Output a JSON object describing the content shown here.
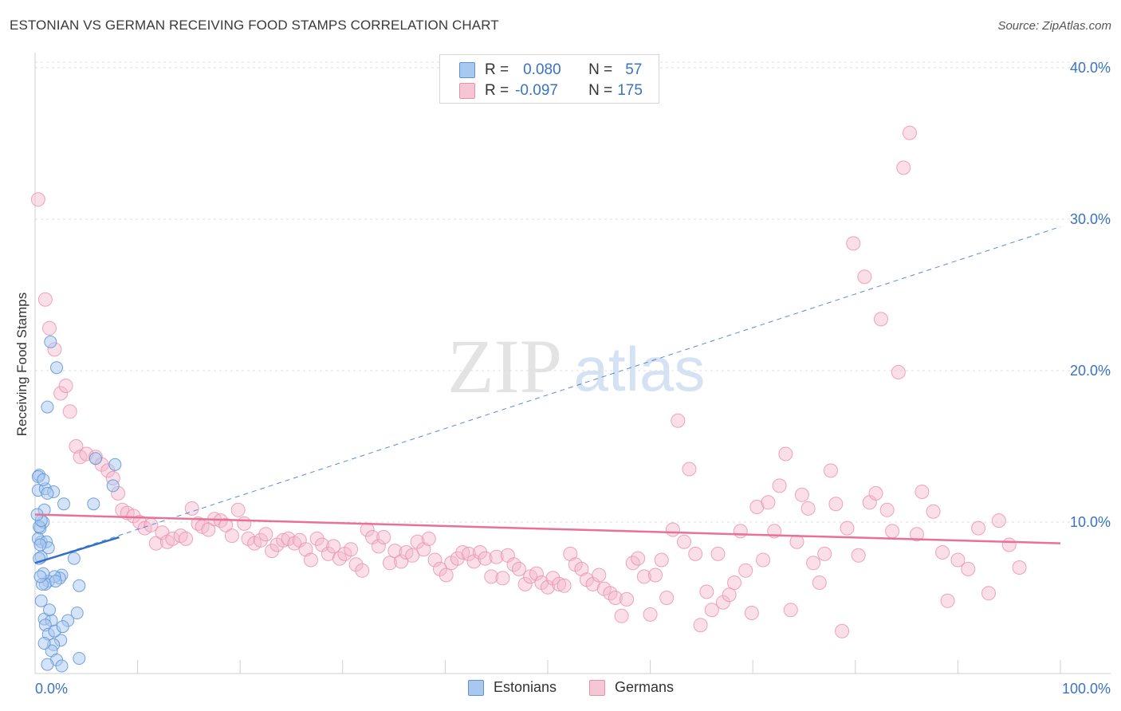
{
  "title": "ESTONIAN VS GERMAN RECEIVING FOOD STAMPS CORRELATION CHART",
  "source": "Source: ZipAtlas.com",
  "watermark": {
    "zip": "ZIP",
    "atlas": "atlas"
  },
  "colors": {
    "estonian_fill": "#a9c8ef",
    "estonian_stroke": "#5b93d6",
    "estonian_line": "#3070c8",
    "german_fill": "#f5b8cb",
    "german_stroke": "#e890ab",
    "german_line": "#e8709a",
    "axis_text": "#3a73c4",
    "grid": "#dcdcdc"
  },
  "legend": {
    "rows": [
      {
        "r_label": "R =",
        "r_value": "0.080",
        "n_label": "N =",
        "n_value": "57"
      },
      {
        "r_label": "R =",
        "r_value": "-0.097",
        "n_label": "N =",
        "n_value": "175"
      }
    ]
  },
  "bottom_legend": {
    "estonians": "Estonians",
    "germans": "Germans"
  },
  "chart_data": {
    "type": "scatter",
    "title": "ESTONIAN VS GERMAN RECEIVING FOOD STAMPS CORRELATION CHART",
    "xlabel": "",
    "ylabel": "Receiving Food Stamps",
    "xlim": [
      0,
      100
    ],
    "ylim": [
      0,
      41
    ],
    "x_tick_labels": [
      "0.0%",
      "100.0%"
    ],
    "y_ticks": [
      10,
      20,
      30,
      40
    ],
    "y_tick_labels": [
      "10.0%",
      "20.0%",
      "30.0%",
      "40.0%"
    ],
    "grid": true,
    "series": [
      {
        "name": "Estonians",
        "r": 0.08,
        "n": 57,
        "trend": {
          "x": [
            0,
            8.2
          ],
          "y": [
            7.3,
            9.0
          ]
        },
        "trend_extended": {
          "x": [
            0,
            100
          ],
          "y": [
            7.3,
            29.5
          ]
        },
        "points": [
          [
            0.3,
            12.1
          ],
          [
            0.4,
            13.1
          ],
          [
            0.6,
            8.7
          ],
          [
            0.5,
            9.6
          ],
          [
            0.8,
            10.0
          ],
          [
            0.3,
            8.9
          ],
          [
            0.9,
            10.8
          ],
          [
            0.6,
            7.7
          ],
          [
            1.0,
            12.2
          ],
          [
            1.1,
            8.7
          ],
          [
            1.3,
            8.3
          ],
          [
            1.2,
            17.6
          ],
          [
            1.5,
            21.9
          ],
          [
            2.1,
            20.2
          ],
          [
            1.8,
            12.0
          ],
          [
            2.8,
            11.2
          ],
          [
            5.7,
            11.2
          ],
          [
            7.8,
            13.8
          ],
          [
            7.6,
            12.4
          ],
          [
            5.9,
            14.2
          ],
          [
            3.8,
            7.6
          ],
          [
            2.6,
            6.5
          ],
          [
            2.4,
            6.3
          ],
          [
            1.9,
            6.4
          ],
          [
            1.3,
            6.1
          ],
          [
            1.0,
            5.9
          ],
          [
            2.0,
            6.1
          ],
          [
            0.8,
            6.6
          ],
          [
            0.6,
            4.8
          ],
          [
            0.9,
            3.6
          ],
          [
            1.6,
            3.5
          ],
          [
            1.0,
            3.2
          ],
          [
            1.3,
            2.6
          ],
          [
            2.5,
            2.2
          ],
          [
            1.8,
            1.9
          ],
          [
            1.6,
            1.5
          ],
          [
            2.1,
            0.9
          ],
          [
            1.2,
            0.6
          ],
          [
            2.6,
            0.5
          ],
          [
            4.3,
            1.0
          ],
          [
            3.2,
            3.5
          ],
          [
            4.1,
            4.0
          ],
          [
            4.3,
            5.8
          ],
          [
            0.7,
            5.9
          ],
          [
            0.4,
            7.6
          ],
          [
            0.5,
            8.5
          ],
          [
            0.4,
            9.7
          ],
          [
            0.6,
            10.1
          ],
          [
            1.2,
            11.9
          ],
          [
            0.3,
            13.0
          ],
          [
            0.8,
            12.8
          ],
          [
            0.9,
            2.0
          ],
          [
            1.9,
            2.8
          ],
          [
            0.5,
            6.4
          ],
          [
            1.4,
            4.2
          ],
          [
            2.7,
            3.1
          ],
          [
            0.2,
            10.5
          ]
        ]
      },
      {
        "name": "Germans",
        "r": -0.097,
        "n": 175,
        "trend": {
          "x": [
            0,
            100
          ],
          "y": [
            10.5,
            8.6
          ]
        },
        "points": [
          [
            0.3,
            31.3
          ],
          [
            1.0,
            24.7
          ],
          [
            1.4,
            22.8
          ],
          [
            1.9,
            21.4
          ],
          [
            2.5,
            18.5
          ],
          [
            3.0,
            19.0
          ],
          [
            3.4,
            17.3
          ],
          [
            4.0,
            15.0
          ],
          [
            4.4,
            14.3
          ],
          [
            5.0,
            14.5
          ],
          [
            5.9,
            14.3
          ],
          [
            6.5,
            13.8
          ],
          [
            7.1,
            13.4
          ],
          [
            7.6,
            12.9
          ],
          [
            8.1,
            11.9
          ],
          [
            8.5,
            10.8
          ],
          [
            9.0,
            10.6
          ],
          [
            9.6,
            10.4
          ],
          [
            10.2,
            10.0
          ],
          [
            10.7,
            9.6
          ],
          [
            11.3,
            9.8
          ],
          [
            11.8,
            8.6
          ],
          [
            12.4,
            9.3
          ],
          [
            12.9,
            8.7
          ],
          [
            13.4,
            8.9
          ],
          [
            14.2,
            9.1
          ],
          [
            14.7,
            8.9
          ],
          [
            15.3,
            10.9
          ],
          [
            15.9,
            9.9
          ],
          [
            16.3,
            9.7
          ],
          [
            16.9,
            9.5
          ],
          [
            17.5,
            10.2
          ],
          [
            18.1,
            10.1
          ],
          [
            18.6,
            9.8
          ],
          [
            19.2,
            9.1
          ],
          [
            19.8,
            10.8
          ],
          [
            20.4,
            9.9
          ],
          [
            20.8,
            8.9
          ],
          [
            21.4,
            8.6
          ],
          [
            22.0,
            8.8
          ],
          [
            22.5,
            9.2
          ],
          [
            23.1,
            8.1
          ],
          [
            23.6,
            8.5
          ],
          [
            24.2,
            8.8
          ],
          [
            24.7,
            8.9
          ],
          [
            25.3,
            8.6
          ],
          [
            25.8,
            8.8
          ],
          [
            26.4,
            8.2
          ],
          [
            26.9,
            7.5
          ],
          [
            27.5,
            8.9
          ],
          [
            28.0,
            8.5
          ],
          [
            28.6,
            7.9
          ],
          [
            29.1,
            8.4
          ],
          [
            29.7,
            7.6
          ],
          [
            30.2,
            7.9
          ],
          [
            30.8,
            8.2
          ],
          [
            31.3,
            7.2
          ],
          [
            31.9,
            6.8
          ],
          [
            32.4,
            9.5
          ],
          [
            32.9,
            9.0
          ],
          [
            33.5,
            8.4
          ],
          [
            34.0,
            9.0
          ],
          [
            34.6,
            7.3
          ],
          [
            35.1,
            8.1
          ],
          [
            35.7,
            7.4
          ],
          [
            36.2,
            8.0
          ],
          [
            36.8,
            7.8
          ],
          [
            37.3,
            8.7
          ],
          [
            37.9,
            8.2
          ],
          [
            38.4,
            8.9
          ],
          [
            39.0,
            7.5
          ],
          [
            39.5,
            6.9
          ],
          [
            40.1,
            6.5
          ],
          [
            40.6,
            7.3
          ],
          [
            41.2,
            7.6
          ],
          [
            41.7,
            8.0
          ],
          [
            42.3,
            7.9
          ],
          [
            42.8,
            7.4
          ],
          [
            43.4,
            8.0
          ],
          [
            43.9,
            7.6
          ],
          [
            44.5,
            6.4
          ],
          [
            45.0,
            7.7
          ],
          [
            45.6,
            6.3
          ],
          [
            46.1,
            7.8
          ],
          [
            46.7,
            7.2
          ],
          [
            47.2,
            6.9
          ],
          [
            47.8,
            5.9
          ],
          [
            48.3,
            6.4
          ],
          [
            48.9,
            6.6
          ],
          [
            49.4,
            6.0
          ],
          [
            50.0,
            5.7
          ],
          [
            50.5,
            6.3
          ],
          [
            51.1,
            5.9
          ],
          [
            51.6,
            5.8
          ],
          [
            52.2,
            7.9
          ],
          [
            52.7,
            7.2
          ],
          [
            53.3,
            6.9
          ],
          [
            53.8,
            6.2
          ],
          [
            54.4,
            5.9
          ],
          [
            55.0,
            6.5
          ],
          [
            55.5,
            5.6
          ],
          [
            56.1,
            5.3
          ],
          [
            56.6,
            5.0
          ],
          [
            57.2,
            3.8
          ],
          [
            57.7,
            4.9
          ],
          [
            58.3,
            7.3
          ],
          [
            58.8,
            7.6
          ],
          [
            59.4,
            6.4
          ],
          [
            60.0,
            3.9
          ],
          [
            60.5,
            6.5
          ],
          [
            61.1,
            7.5
          ],
          [
            61.6,
            5.0
          ],
          [
            62.2,
            9.5
          ],
          [
            62.7,
            16.7
          ],
          [
            63.3,
            8.7
          ],
          [
            63.8,
            13.5
          ],
          [
            64.4,
            7.9
          ],
          [
            64.9,
            3.2
          ],
          [
            65.5,
            5.4
          ],
          [
            66.0,
            4.2
          ],
          [
            66.6,
            7.9
          ],
          [
            67.1,
            4.7
          ],
          [
            67.7,
            5.2
          ],
          [
            68.2,
            6.0
          ],
          [
            68.8,
            9.4
          ],
          [
            69.3,
            6.8
          ],
          [
            69.9,
            4.0
          ],
          [
            70.4,
            11.0
          ],
          [
            71.0,
            7.5
          ],
          [
            71.5,
            11.3
          ],
          [
            72.1,
            9.4
          ],
          [
            72.6,
            12.4
          ],
          [
            73.2,
            14.5
          ],
          [
            73.7,
            4.2
          ],
          [
            74.3,
            8.7
          ],
          [
            74.8,
            11.8
          ],
          [
            75.4,
            10.9
          ],
          [
            75.9,
            7.3
          ],
          [
            76.5,
            6.0
          ],
          [
            77.0,
            7.9
          ],
          [
            77.6,
            13.4
          ],
          [
            78.1,
            11.2
          ],
          [
            78.7,
            2.8
          ],
          [
            79.2,
            9.6
          ],
          [
            79.8,
            28.4
          ],
          [
            80.3,
            7.8
          ],
          [
            80.9,
            26.2
          ],
          [
            81.4,
            11.3
          ],
          [
            82.0,
            11.9
          ],
          [
            82.5,
            23.4
          ],
          [
            83.1,
            10.8
          ],
          [
            83.6,
            9.4
          ],
          [
            84.2,
            19.9
          ],
          [
            84.7,
            33.4
          ],
          [
            85.3,
            35.7
          ],
          [
            86.0,
            9.2
          ],
          [
            86.5,
            12.0
          ],
          [
            87.6,
            10.7
          ],
          [
            88.5,
            8.0
          ],
          [
            89.0,
            4.8
          ],
          [
            90.0,
            7.5
          ],
          [
            91.0,
            6.9
          ],
          [
            92.0,
            9.6
          ],
          [
            93.0,
            5.3
          ],
          [
            94.0,
            10.1
          ],
          [
            95.0,
            8.5
          ],
          [
            96.0,
            7.0
          ]
        ]
      }
    ]
  }
}
